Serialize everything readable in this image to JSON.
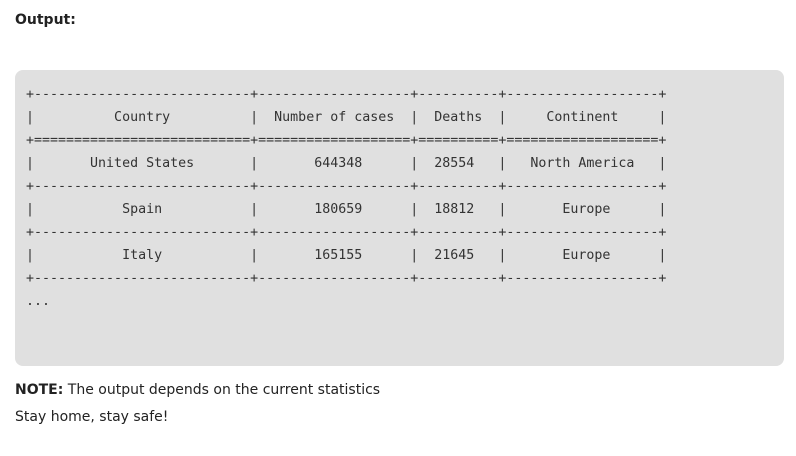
{
  "heading": {
    "label": "Output:"
  },
  "console_output": {
    "lines": [
      "+---------------------------+-------------------+----------+-------------------+",
      "|          Country          |  Number of cases  |  Deaths  |     Continent     |",
      "+===========================+===================+==========+===================+",
      "|       United States       |       644348      |  28554   |   North America   |",
      "+---------------------------+-------------------+----------+-------------------+",
      "|           Spain           |       180659      |  18812   |       Europe      |",
      "+---------------------------+-------------------+----------+-------------------+",
      "|           Italy           |       165155      |  21645   |       Europe      |",
      "+---------------------------+-------------------+----------+-------------------+",
      "..."
    ]
  },
  "note": {
    "label": "NOTE:",
    "text": " The output depends on the current statistics"
  },
  "closing": {
    "text": "Stay home, stay safe!"
  }
}
